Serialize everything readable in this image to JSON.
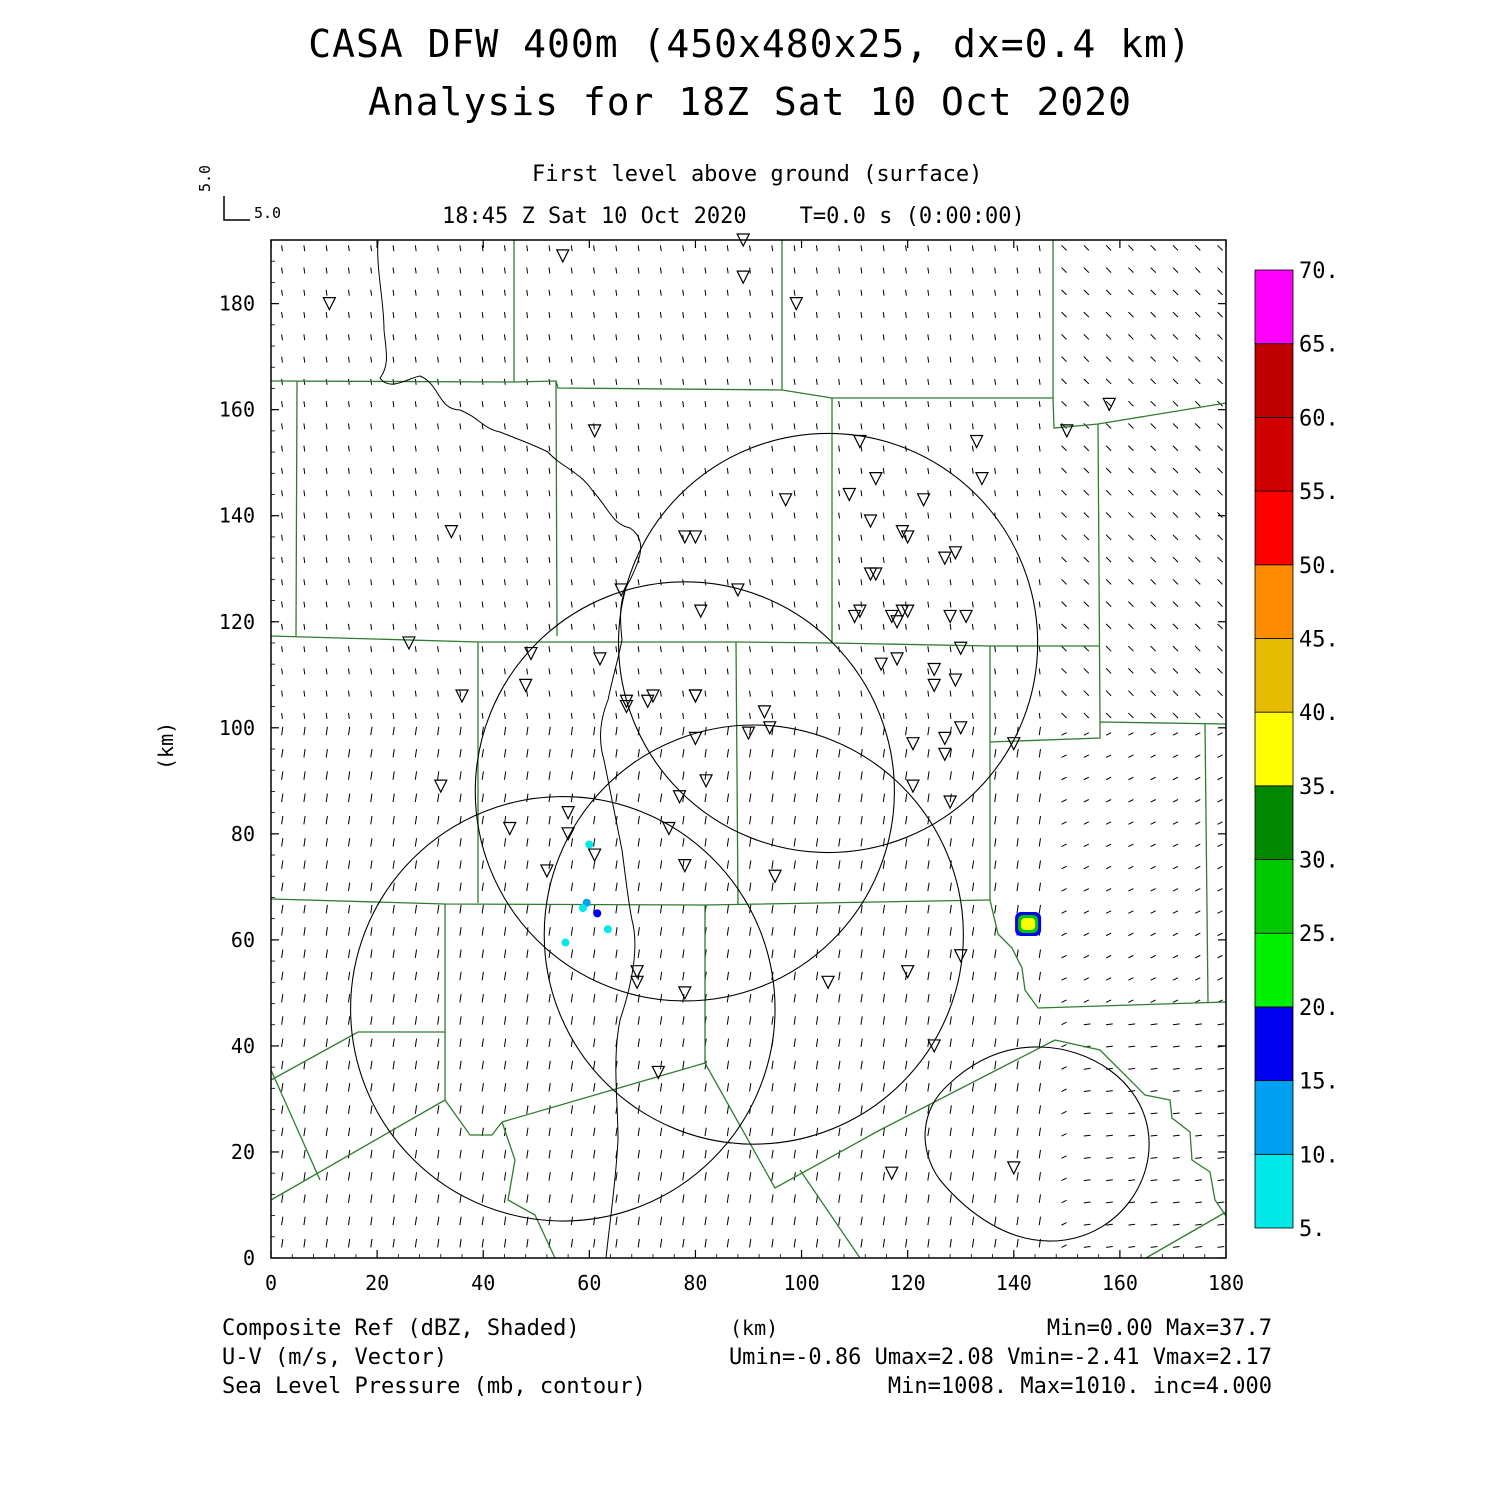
{
  "title": {
    "line1": "CASA DFW 400m (450x480x25, dx=0.4 km)",
    "line2": "Analysis for 18Z Sat 10 Oct 2020"
  },
  "subtitle": {
    "level": "First level above ground (surface)",
    "valid_time": "18:45 Z Sat 10 Oct 2020    T=0.0 s (0:00:00)"
  },
  "reference_vector": {
    "u_label": "5.0",
    "v_label": "5.0"
  },
  "axes": {
    "xlabel": "(km)",
    "ylabel": "(km)",
    "xlim": [
      0,
      180
    ],
    "ylim": [
      0,
      192
    ],
    "xticks": [
      0,
      20,
      40,
      60,
      80,
      100,
      120,
      140,
      160,
      180
    ],
    "yticks": [
      0,
      20,
      40,
      60,
      80,
      100,
      120,
      140,
      160,
      180
    ]
  },
  "colorbar": {
    "labels": [
      "5.",
      "10.",
      "15.",
      "20.",
      "25.",
      "30.",
      "35.",
      "40.",
      "45.",
      "50.",
      "55.",
      "60.",
      "65.",
      "70."
    ],
    "colors": [
      "#00e8e8",
      "#00a0f0",
      "#0000f0",
      "#00f000",
      "#00c800",
      "#008800",
      "#ffff00",
      "#e6bc00",
      "#ff8c00",
      "#ff0000",
      "#d00000",
      "#c00000",
      "#ff00ff"
    ]
  },
  "footer": {
    "ref_field": "Composite Ref (dBZ, Shaded)",
    "ref_stats": "Min=0.00 Max=37.7",
    "wind_field": "U-V (m/s, Vector)",
    "wind_stats": "Umin=-0.86 Umax=2.08 Vmin=-2.41 Vmax=2.17",
    "slp_field": "Sea Level Pressure (mb, contour)",
    "slp_stats": "Min=1008. Max=1010. inc=4.000"
  },
  "map": {
    "radar_coverage_circles_km": [
      {
        "cx": 105,
        "cy": 116,
        "r": 39.5
      },
      {
        "cx": 78,
        "cy": 88,
        "r": 39.5
      },
      {
        "cx": 91,
        "cy": 61,
        "r": 39.5
      },
      {
        "cx": 55,
        "cy": 47,
        "r": 40
      }
    ],
    "stations_km": [
      [
        55,
        189
      ],
      [
        89,
        192
      ],
      [
        89,
        185
      ],
      [
        99,
        180
      ],
      [
        11,
        180
      ],
      [
        61,
        156
      ],
      [
        158,
        161
      ],
      [
        150,
        156
      ],
      [
        133,
        154
      ],
      [
        111,
        154
      ],
      [
        134,
        147
      ],
      [
        114,
        147
      ],
      [
        123,
        143
      ],
      [
        109,
        144
      ],
      [
        97,
        143
      ],
      [
        113,
        139
      ],
      [
        34,
        137
      ],
      [
        78,
        136
      ],
      [
        80,
        136
      ],
      [
        119,
        137
      ],
      [
        120,
        136
      ],
      [
        129,
        133
      ],
      [
        127,
        132
      ],
      [
        113,
        129
      ],
      [
        114,
        129
      ],
      [
        66,
        126
      ],
      [
        88,
        126
      ],
      [
        81,
        122
      ],
      [
        111,
        122
      ],
      [
        110,
        121
      ],
      [
        119,
        122
      ],
      [
        118,
        120
      ],
      [
        120,
        122
      ],
      [
        117,
        121
      ],
      [
        128,
        121
      ],
      [
        131,
        121
      ],
      [
        130,
        115
      ],
      [
        26,
        116
      ],
      [
        49,
        114
      ],
      [
        62,
        113
      ],
      [
        118,
        113
      ],
      [
        115,
        112
      ],
      [
        125,
        111
      ],
      [
        125,
        108
      ],
      [
        48,
        108
      ],
      [
        129,
        109
      ],
      [
        36,
        106
      ],
      [
        67,
        105
      ],
      [
        80,
        106
      ],
      [
        80,
        106
      ],
      [
        72,
        106
      ],
      [
        71,
        105
      ],
      [
        67,
        104
      ],
      [
        93,
        103
      ],
      [
        94,
        100
      ],
      [
        90,
        99
      ],
      [
        130,
        100
      ],
      [
        127,
        98
      ],
      [
        80,
        98
      ],
      [
        121,
        97
      ],
      [
        127,
        95
      ],
      [
        140,
        97
      ],
      [
        82,
        90
      ],
      [
        121,
        89
      ],
      [
        32,
        89
      ],
      [
        77,
        87
      ],
      [
        56,
        84
      ],
      [
        128,
        86
      ],
      [
        45,
        81
      ],
      [
        56,
        80
      ],
      [
        75,
        81
      ],
      [
        61,
        76
      ],
      [
        78,
        74
      ],
      [
        52,
        73
      ],
      [
        95,
        72
      ],
      [
        69,
        54
      ],
      [
        69,
        52
      ],
      [
        78,
        50
      ],
      [
        105,
        52
      ],
      [
        120,
        54
      ],
      [
        130,
        57
      ],
      [
        73,
        35
      ],
      [
        125,
        40
      ],
      [
        117,
        16
      ],
      [
        140,
        17
      ]
    ],
    "reflectivity_cells_km": [
      {
        "x": 60.0,
        "y": 78.0,
        "dbz": 5
      },
      {
        "x": 59.5,
        "y": 67.0,
        "dbz": 10
      },
      {
        "x": 58.8,
        "y": 66.0,
        "dbz": 5
      },
      {
        "x": 61.5,
        "y": 65.0,
        "dbz": 15
      },
      {
        "x": 63.5,
        "y": 62.0,
        "dbz": 5
      },
      {
        "x": 55.5,
        "y": 59.5,
        "dbz": 5
      },
      {
        "x": 142.7,
        "y": 63.0,
        "dbz": 37.7
      }
    ]
  }
}
